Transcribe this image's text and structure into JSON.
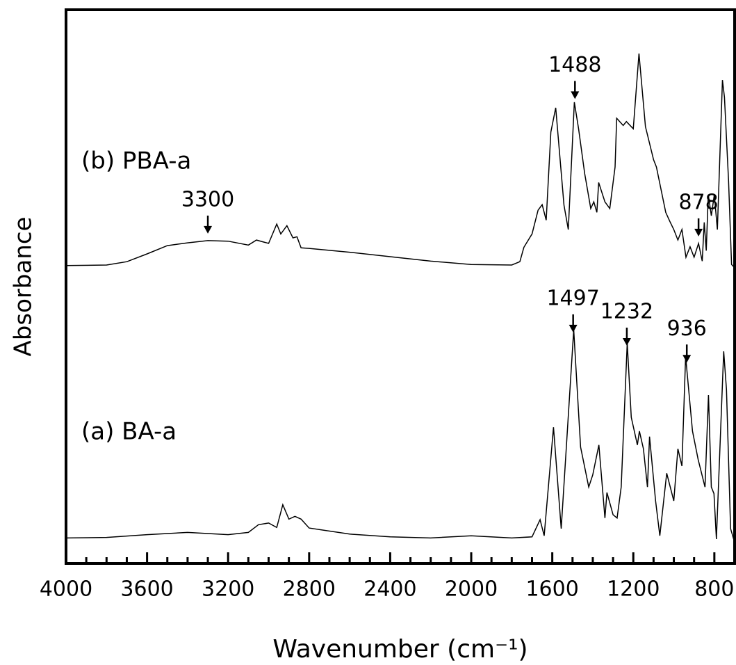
{
  "chart_data": {
    "type": "line",
    "xlabel": "Wavenumber (cm⁻¹)",
    "ylabel": "Absorbance",
    "xlim": [
      4000,
      700
    ],
    "ylim": [
      0,
      100
    ],
    "xticks": [
      4000,
      3600,
      3200,
      2800,
      2400,
      2000,
      1600,
      1200,
      800
    ],
    "xminorticks": [
      3900,
      3800,
      3700,
      3500,
      3400,
      3300,
      3100,
      3000,
      2900,
      2700,
      2600,
      2500,
      2300,
      2200,
      2100,
      1900,
      1800,
      1700,
      1500,
      1400,
      1300,
      1100,
      1000,
      900
    ],
    "series": [
      {
        "name": "(b) PBA-a",
        "color": "#000000",
        "x": [
          4000,
          3800,
          3700,
          3600,
          3500,
          3400,
          3300,
          3200,
          3100,
          3060,
          3000,
          2960,
          2940,
          2910,
          2880,
          2860,
          2840,
          2800,
          2600,
          2400,
          2200,
          2000,
          1800,
          1760,
          1740,
          1700,
          1670,
          1650,
          1630,
          1607,
          1583,
          1542,
          1521,
          1491,
          1470,
          1440,
          1410,
          1395,
          1380,
          1371,
          1340,
          1316,
          1290,
          1282,
          1250,
          1234,
          1200,
          1172,
          1140,
          1100,
          1086,
          1040,
          1020,
          1000,
          980,
          960,
          940,
          920,
          900,
          878,
          860,
          850,
          840,
          830,
          815,
          800,
          785,
          760,
          750,
          730,
          715,
          700
        ],
        "values": [
          53.8,
          53.9,
          54.5,
          55.9,
          57.4,
          57.9,
          58.3,
          58.2,
          57.5,
          58.4,
          57.8,
          61.3,
          59.5,
          61.0,
          58.8,
          59.0,
          57.0,
          56.9,
          56.2,
          55.4,
          54.6,
          54.0,
          53.9,
          54.5,
          57.1,
          59.5,
          63.8,
          64.8,
          62.0,
          77.9,
          82.3,
          64.7,
          60.3,
          83.3,
          78.5,
          70.4,
          64.1,
          65.3,
          63.4,
          68.8,
          65.3,
          64.1,
          71.6,
          80.4,
          79.1,
          79.8,
          78.5,
          92.1,
          78.9,
          72.9,
          71.6,
          63.4,
          61.8,
          60.3,
          58.4,
          60.3,
          55.3,
          57.2,
          55.3,
          57.8,
          54.6,
          61.6,
          56.5,
          66.6,
          62.8,
          66.6,
          60.3,
          87.3,
          84.2,
          69.1,
          54.0,
          53.4
        ],
        "annotations": [
          3300,
          1488,
          878
        ]
      },
      {
        "name": "(a) BA-a",
        "color": "#000000",
        "x": [
          4000,
          3800,
          3600,
          3400,
          3200,
          3100,
          3050,
          3000,
          2960,
          2930,
          2900,
          2870,
          2840,
          2800,
          2600,
          2400,
          2200,
          2000,
          1800,
          1700,
          1660,
          1640,
          1594,
          1556,
          1494,
          1460,
          1420,
          1400,
          1370,
          1340,
          1330,
          1300,
          1280,
          1260,
          1230,
          1210,
          1180,
          1170,
          1150,
          1130,
          1120,
          1090,
          1069,
          1035,
          1000,
          980,
          960,
          942,
          908,
          880,
          846,
          829,
          815,
          802,
          790,
          754,
          740,
          720,
          700
        ],
        "values": [
          4.6,
          4.7,
          5.2,
          5.6,
          5.2,
          5.6,
          7.0,
          7.3,
          6.5,
          10.6,
          8.0,
          8.5,
          8.0,
          6.4,
          5.3,
          4.8,
          4.6,
          5.0,
          4.6,
          4.8,
          7.9,
          5.0,
          24.6,
          6.3,
          42.2,
          21.0,
          13.8,
          16.0,
          21.4,
          8.2,
          12.8,
          8.8,
          8.2,
          13.8,
          39.8,
          26.4,
          21.4,
          23.9,
          20.7,
          13.8,
          22.9,
          11.3,
          5.0,
          16.3,
          11.3,
          20.7,
          17.6,
          37.4,
          23.9,
          18.8,
          13.8,
          30.4,
          13.8,
          12.6,
          4.4,
          38.3,
          31.4,
          6.3,
          3.8
        ],
        "annotations": [
          1497,
          1232,
          936
        ]
      }
    ]
  }
}
